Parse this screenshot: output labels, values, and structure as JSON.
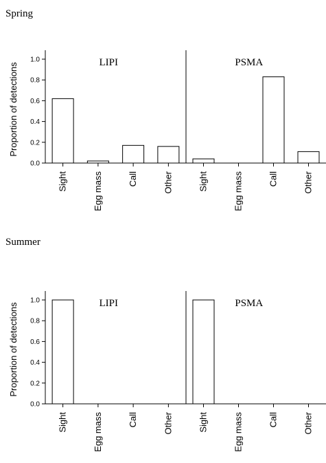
{
  "chart_data": [
    {
      "type": "bar",
      "title": "Spring",
      "ylabel": "Proportion of detections",
      "ylim": [
        0,
        1.0
      ],
      "yticks": [
        "0.0",
        "0.2",
        "0.4",
        "0.6",
        "0.8",
        "1.0"
      ],
      "grid": false,
      "categories": [
        "Sight",
        "Egg mass",
        "Call",
        "Other"
      ],
      "panels": [
        {
          "name": "LIPI",
          "values": [
            0.62,
            0.02,
            0.17,
            0.16
          ]
        },
        {
          "name": "PSMA",
          "values": [
            0.04,
            0.0,
            0.83,
            0.11
          ]
        }
      ]
    },
    {
      "type": "bar",
      "title": "Summer",
      "ylabel": "Proportion of detections",
      "ylim": [
        0,
        1.0
      ],
      "yticks": [
        "0.0",
        "0.2",
        "0.4",
        "0.6",
        "0.8",
        "1.0"
      ],
      "grid": false,
      "categories": [
        "Sight",
        "Egg mass",
        "Call",
        "Other"
      ],
      "panels": [
        {
          "name": "LIPI",
          "values": [
            1.0,
            0.0,
            0.0,
            0.0
          ]
        },
        {
          "name": "PSMA",
          "values": [
            1.0,
            0.0,
            0.0,
            0.0
          ]
        }
      ]
    }
  ]
}
